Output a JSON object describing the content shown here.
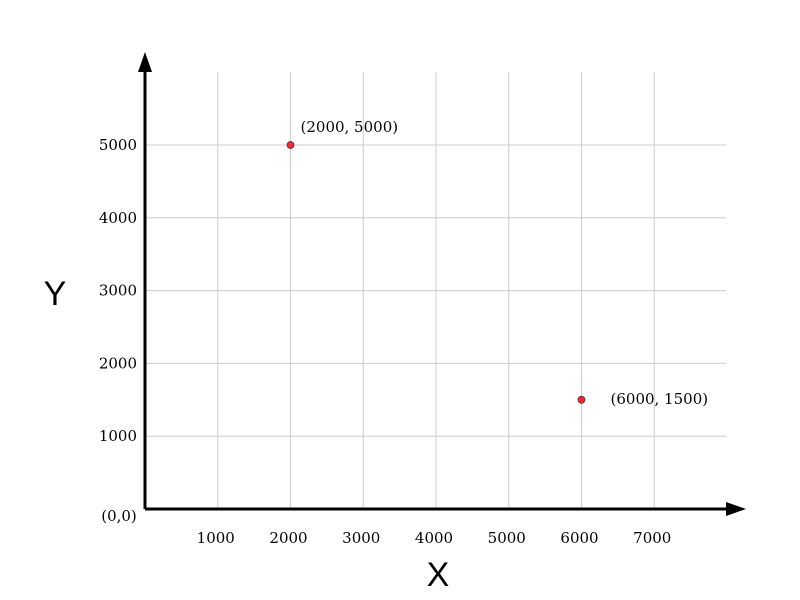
{
  "chart_data": {
    "type": "scatter",
    "xlabel": "X",
    "ylabel": "Y",
    "origin_label": "(0,0)",
    "xlim": [
      0,
      8000
    ],
    "ylim": [
      0,
      6000
    ],
    "x_ticks": [
      1000,
      2000,
      3000,
      4000,
      5000,
      6000,
      7000
    ],
    "y_ticks": [
      1000,
      2000,
      3000,
      4000,
      5000
    ],
    "grid": true,
    "point_color": "#e0303a",
    "points": [
      {
        "x": 2000,
        "y": 5000,
        "label": "(2000, 5000)"
      },
      {
        "x": 6000,
        "y": 1500,
        "label": "(6000, 1500)"
      }
    ]
  }
}
